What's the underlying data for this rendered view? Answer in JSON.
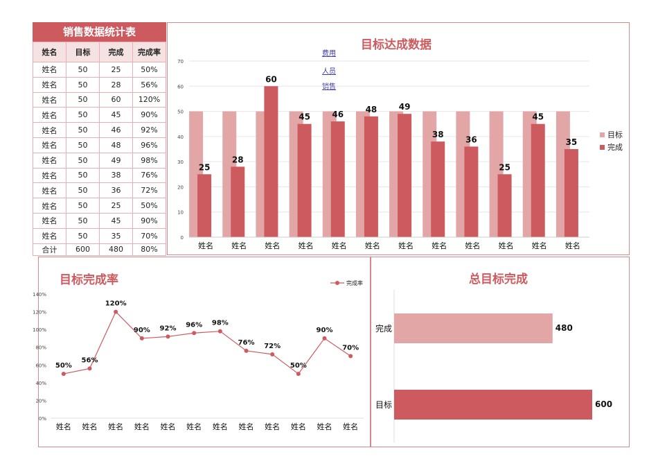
{
  "table": {
    "title": "销售数据统计表",
    "headers": [
      "姓名",
      "目标",
      "完成",
      "完成率"
    ],
    "rows": [
      [
        "姓名",
        "50",
        "25",
        "50%"
      ],
      [
        "姓名",
        "50",
        "28",
        "56%"
      ],
      [
        "姓名",
        "50",
        "60",
        "120%"
      ],
      [
        "姓名",
        "50",
        "45",
        "90%"
      ],
      [
        "姓名",
        "50",
        "46",
        "92%"
      ],
      [
        "姓名",
        "50",
        "48",
        "96%"
      ],
      [
        "姓名",
        "50",
        "49",
        "98%"
      ],
      [
        "姓名",
        "50",
        "38",
        "76%"
      ],
      [
        "姓名",
        "50",
        "36",
        "72%"
      ],
      [
        "姓名",
        "50",
        "25",
        "50%"
      ],
      [
        "姓名",
        "50",
        "45",
        "90%"
      ],
      [
        "姓名",
        "50",
        "35",
        "70%"
      ]
    ],
    "total": [
      "合计",
      "600",
      "480",
      "80%"
    ]
  },
  "links": [
    "费用",
    "人员",
    "销售"
  ],
  "colors": {
    "accent": "#cd5a5e",
    "light": "#e3a6a7"
  },
  "chart_data": [
    {
      "type": "bar",
      "title": "目标达成数据",
      "categories": [
        "姓名",
        "姓名",
        "姓名",
        "姓名",
        "姓名",
        "姓名",
        "姓名",
        "姓名",
        "姓名",
        "姓名",
        "姓名",
        "姓名"
      ],
      "series": [
        {
          "name": "目标",
          "values": [
            50,
            50,
            50,
            50,
            50,
            50,
            50,
            50,
            50,
            50,
            50,
            50
          ]
        },
        {
          "name": "完成",
          "values": [
            25,
            28,
            60,
            45,
            46,
            48,
            49,
            38,
            36,
            25,
            45,
            35
          ]
        }
      ],
      "ylim": [
        0,
        70
      ],
      "yticks": [
        0,
        10,
        20,
        30,
        40,
        50,
        60,
        70
      ],
      "legend": "right",
      "grid": true
    },
    {
      "type": "line",
      "title": "目标完成率",
      "categories": [
        "姓名",
        "姓名",
        "姓名",
        "姓名",
        "姓名",
        "姓名",
        "姓名",
        "姓名",
        "姓名",
        "姓名",
        "姓名",
        "姓名"
      ],
      "series": [
        {
          "name": "完成率",
          "values": [
            50,
            56,
            120,
            90,
            92,
            96,
            98,
            76,
            72,
            50,
            90,
            70
          ]
        }
      ],
      "data_labels": [
        "50%",
        "56%",
        "120%",
        "90%",
        "92%",
        "96%",
        "98%",
        "76%",
        "72%",
        "50%",
        "90%",
        "70%"
      ],
      "ylim": [
        0,
        140
      ],
      "yticks": [
        "0%",
        "20%",
        "40%",
        "60%",
        "80%",
        "100%",
        "120%",
        "140%"
      ],
      "legend": "top-right"
    },
    {
      "type": "bar",
      "orientation": "horizontal",
      "title": "总目标完成",
      "categories": [
        "完成",
        "目标"
      ],
      "values": [
        480,
        600
      ]
    }
  ]
}
